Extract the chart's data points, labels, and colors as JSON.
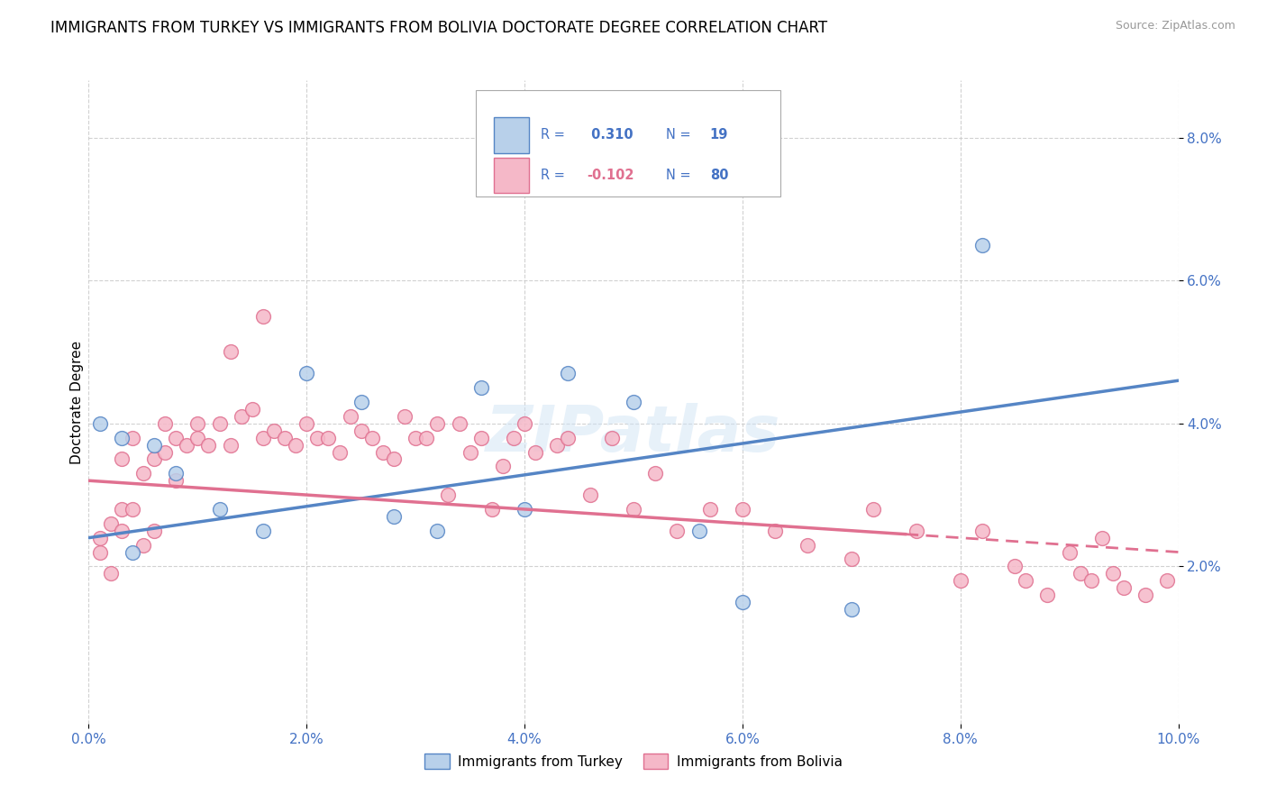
{
  "title": "IMMIGRANTS FROM TURKEY VS IMMIGRANTS FROM BOLIVIA DOCTORATE DEGREE CORRELATION CHART",
  "source": "Source: ZipAtlas.com",
  "ylabel": "Doctorate Degree",
  "R_turkey": 0.31,
  "N_turkey": 19,
  "R_bolivia": -0.102,
  "N_bolivia": 80,
  "turkey_face_color": "#b8d0ea",
  "turkey_edge_color": "#5585c5",
  "bolivia_face_color": "#f5b8c8",
  "bolivia_edge_color": "#e07090",
  "blue_text": "#4472c4",
  "pink_text": "#e07090",
  "legend_label_turkey": "Immigrants from Turkey",
  "legend_label_bolivia": "Immigrants from Bolivia",
  "xlim": [
    0.0,
    0.1
  ],
  "ylim": [
    -0.002,
    0.088
  ],
  "xtick_values": [
    0.0,
    0.02,
    0.04,
    0.06,
    0.08,
    0.1
  ],
  "ytick_values": [
    0.02,
    0.04,
    0.06,
    0.08
  ],
  "background_color": "#ffffff",
  "grid_color": "#cccccc",
  "title_fontsize": 12,
  "tick_fontsize": 11,
  "legend_fontsize": 11,
  "marker_size": 130,
  "turkey_line_y0": 0.024,
  "turkey_line_y1": 0.046,
  "bolivia_line_y0": 0.032,
  "bolivia_line_y1": 0.022,
  "turkey_x": [
    0.001,
    0.003,
    0.004,
    0.006,
    0.008,
    0.012,
    0.016,
    0.02,
    0.025,
    0.028,
    0.032,
    0.036,
    0.04,
    0.044,
    0.05,
    0.056,
    0.06,
    0.07,
    0.082
  ],
  "turkey_y": [
    0.04,
    0.038,
    0.022,
    0.037,
    0.033,
    0.028,
    0.025,
    0.047,
    0.043,
    0.027,
    0.025,
    0.045,
    0.028,
    0.047,
    0.043,
    0.025,
    0.015,
    0.014,
    0.065
  ],
  "bolivia_x": [
    0.001,
    0.001,
    0.002,
    0.002,
    0.003,
    0.003,
    0.003,
    0.004,
    0.004,
    0.005,
    0.005,
    0.006,
    0.006,
    0.007,
    0.007,
    0.008,
    0.008,
    0.009,
    0.01,
    0.01,
    0.011,
    0.012,
    0.013,
    0.013,
    0.014,
    0.015,
    0.016,
    0.016,
    0.017,
    0.018,
    0.019,
    0.02,
    0.021,
    0.022,
    0.023,
    0.024,
    0.025,
    0.026,
    0.027,
    0.028,
    0.029,
    0.03,
    0.031,
    0.032,
    0.033,
    0.034,
    0.035,
    0.036,
    0.037,
    0.038,
    0.039,
    0.04,
    0.041,
    0.043,
    0.044,
    0.046,
    0.048,
    0.05,
    0.052,
    0.054,
    0.057,
    0.06,
    0.063,
    0.066,
    0.07,
    0.072,
    0.076,
    0.08,
    0.082,
    0.085,
    0.086,
    0.088,
    0.09,
    0.091,
    0.092,
    0.093,
    0.094,
    0.095,
    0.097,
    0.099
  ],
  "bolivia_y": [
    0.022,
    0.024,
    0.019,
    0.026,
    0.025,
    0.028,
    0.035,
    0.028,
    0.038,
    0.023,
    0.033,
    0.025,
    0.035,
    0.036,
    0.04,
    0.032,
    0.038,
    0.037,
    0.038,
    0.04,
    0.037,
    0.04,
    0.037,
    0.05,
    0.041,
    0.042,
    0.038,
    0.055,
    0.039,
    0.038,
    0.037,
    0.04,
    0.038,
    0.038,
    0.036,
    0.041,
    0.039,
    0.038,
    0.036,
    0.035,
    0.041,
    0.038,
    0.038,
    0.04,
    0.03,
    0.04,
    0.036,
    0.038,
    0.028,
    0.034,
    0.038,
    0.04,
    0.036,
    0.037,
    0.038,
    0.03,
    0.038,
    0.028,
    0.033,
    0.025,
    0.028,
    0.028,
    0.025,
    0.023,
    0.021,
    0.028,
    0.025,
    0.018,
    0.025,
    0.02,
    0.018,
    0.016,
    0.022,
    0.019,
    0.018,
    0.024,
    0.019,
    0.017,
    0.016,
    0.018
  ]
}
